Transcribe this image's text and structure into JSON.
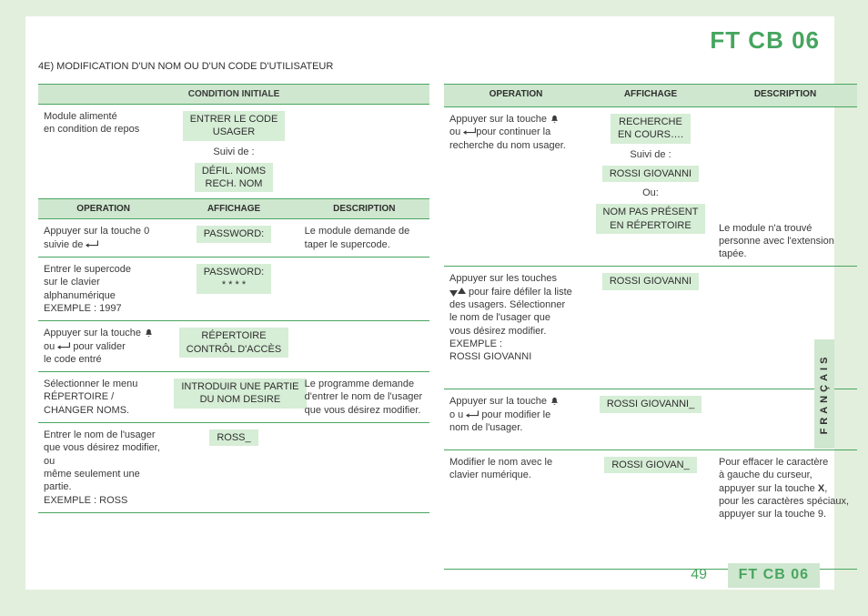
{
  "title": "FT CB 06",
  "sectionHeading": "4E) MODIFICATION D'UN NOM OU D'UN CODE D'UTILISATEUR",
  "headers": {
    "condInit": "CONDITION INITIALE",
    "op": "OPERATION",
    "af": "AFFICHAGE",
    "de": "DESCRIPTION"
  },
  "icons": {
    "bell": "␆",
    "enter": "␆",
    "downup": "␆"
  },
  "left": {
    "initial": {
      "op": "Module alimenté\nen condition de repos",
      "disp1": "ENTRER LE CODE\nUSAGER",
      "note1": "Suivi de :",
      "disp2": "DÉFIL. NOMS\nRECH. NOM"
    },
    "rows": [
      {
        "op": "Appuyer sur la touche 0\nsuivie de ",
        "opIcon": "enter",
        "disp": [
          "PASSWORD:"
        ],
        "de": "Le module demande de\ntaper le supercode."
      },
      {
        "op": "Entrer le supercode\nsur le clavier\nalphanumérique\nEXEMPLE : 1997",
        "disp": [
          "PASSWORD:\n* * * *"
        ],
        "de": ""
      },
      {
        "op": "Appuyer sur la touche ",
        "opIcon": "bell",
        "op2": "\nou ",
        "opIcon2": "enter",
        "op3": " pour valider\nle code entré",
        "disp": [
          "RÉPERTOIRE\nCONTRÔL D'ACCÈS"
        ],
        "de": ""
      },
      {
        "op": "Sélectionner le menu\nRÉPERTOIRE /\nCHANGER NOMS.",
        "disp": [
          "INTRODUIR UNE PARTIE\nDU NOM DESIRE"
        ],
        "de": "Le programme demande\nd'entrer le nom de l'usager\nque vous désirez modifier."
      },
      {
        "op": "Entrer le nom de l'usager\nque vous désirez modifier, ou\nmême seulement une partie.\nEXEMPLE : ROSS",
        "disp": [
          "ROSS_"
        ],
        "de": ""
      }
    ]
  },
  "right": {
    "rows": [
      {
        "op": "Appuyer sur la touche ",
        "opIcon": "bell",
        "op2": "\nou ",
        "opIcon2": "enter",
        "op3": "pour continuer la\nrecherche du nom usager.",
        "dispBlocks": [
          {
            "disp": "RECHERCHE\nEN COURS….",
            "note": "Suivi de :"
          },
          {
            "disp": "ROSSI GIOVANNI",
            "note": "Ou:"
          },
          {
            "disp": "NOM PAS PRÉSENT\nEN RÉPERTOIRE"
          }
        ],
        "de": "Le module n'a trouvé\npersonne avec l'extension\ntapée.",
        "deAlignBottom": true
      },
      {
        "op": "Appuyer sur les touches\n",
        "opIcon": "downup",
        "op2": " pour faire défiler la liste\ndes usagers. Sélectionner\nle nom de l'usager que\nvous désirez modifier.\nEXEMPLE :\nROSSI GIOVANNI",
        "disp": [
          "ROSSI GIOVANNI"
        ],
        "de": ""
      },
      {
        "op": "Appuyer sur la touche ",
        "opIcon": "bell",
        "op2": "\no u ",
        "opIcon2": "enter",
        "op3": "  pour modifier le\nnom de l'usager.",
        "disp": [
          "ROSSI GIOVANNI_"
        ],
        "de": ""
      },
      {
        "op": "Modifier le nom avec le\nclavier numérique.",
        "disp": [
          "ROSSI GIOVAN_"
        ],
        "de": "Pour effacer le caractère\nà gauche du curseur,\nappuyer sur la touche X,\npour les caractères spéciaux,\nappuyer sur la touche 9.",
        "hasBold": true,
        "boldWord": "X"
      }
    ]
  },
  "sideTab": "FRANÇAIS",
  "pageNumber": "49",
  "footerBadge": "FT CB 06",
  "colors": {
    "pageBg": "#e2efdc",
    "paper": "#ffffff",
    "accent": "#49a560",
    "headerBg": "#cfe7cf",
    "dispBg": "#d6edd6",
    "text": "#3a3a3a"
  }
}
